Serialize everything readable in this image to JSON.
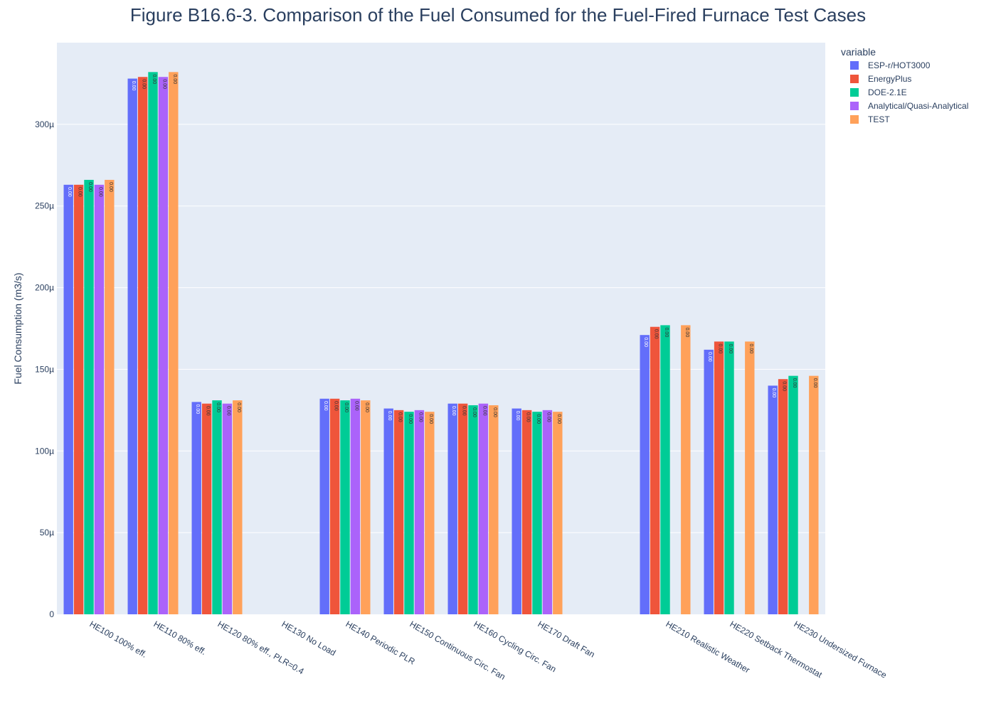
{
  "chart_data": {
    "type": "bar",
    "title": "Figure B16.6-3. Comparison of the Fuel Consumed for the Fuel-Fired Furnace Test Cases",
    "xlabel": "",
    "ylabel": "Fuel Consumption (m3/s)",
    "ylim": [
      0,
      0.00035
    ],
    "yticks": [
      0,
      5e-05,
      0.0001,
      0.00015,
      0.0002,
      0.00025,
      0.0003
    ],
    "ytick_labels": [
      "0",
      "50µ",
      "100µ",
      "150µ",
      "200µ",
      "250µ",
      "300µ"
    ],
    "grid": true,
    "legend_title": "variable",
    "legend_position": "top-right",
    "bar_label_text": "0.00",
    "categories": [
      "HE100 100% eff.",
      "HE110 80% eff.",
      "HE120 80% eff., PLR=0.4",
      "HE130 No Load",
      "HE140 Periodic PLR",
      "HE150 Continuous Circ. Fan",
      "HE160 Cycling Circ. Fan",
      "HE170 Draft Fan",
      "",
      "HE210 Realistic Weather",
      "HE220 Setback Thermostat",
      "HE230 Undersized Furnace"
    ],
    "series": [
      {
        "name": "ESP-r/HOT3000",
        "color": "#636efa",
        "values": [
          0.000263,
          0.000328,
          0.00013,
          0.0,
          0.000132,
          0.000126,
          0.000129,
          0.000126,
          null,
          0.000171,
          0.000162,
          0.00014
        ]
      },
      {
        "name": "EnergyPlus",
        "color": "#ef553b",
        "values": [
          0.000263,
          0.000329,
          0.000129,
          0.0,
          0.000132,
          0.000125,
          0.000129,
          0.000125,
          null,
          0.000176,
          0.000167,
          0.000144
        ]
      },
      {
        "name": "DOE-2.1E",
        "color": "#00cc96",
        "values": [
          0.000266,
          0.000332,
          0.000131,
          0.0,
          0.000131,
          0.000124,
          0.000128,
          0.000124,
          null,
          0.000177,
          0.000167,
          0.000146
        ]
      },
      {
        "name": "Analytical/Quasi-Analytical",
        "color": "#ab63fa",
        "values": [
          0.000263,
          0.000329,
          0.000129,
          0.0,
          0.000132,
          0.000125,
          0.000129,
          0.000125,
          null,
          null,
          null,
          null
        ]
      },
      {
        "name": "TEST",
        "color": "#ffa15a",
        "values": [
          0.000266,
          0.000332,
          0.000131,
          0.0,
          0.000131,
          0.000124,
          0.000128,
          0.000124,
          null,
          0.000177,
          0.000167,
          0.000146
        ]
      }
    ]
  }
}
